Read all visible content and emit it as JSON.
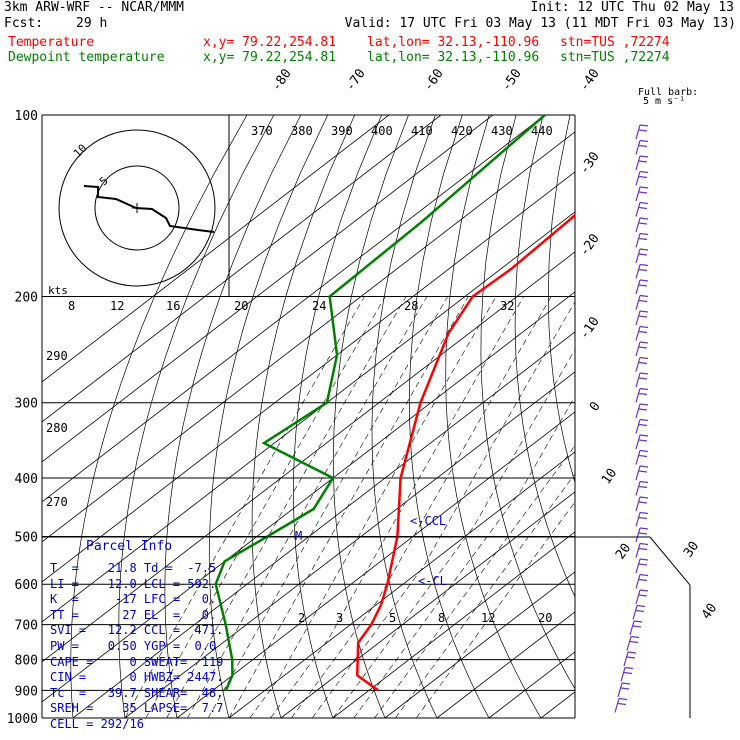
{
  "header": {
    "model": "3km ARW-WRF -- NCAR/MMM",
    "fcst_label": "Fcst:",
    "fcst_value": "29 h",
    "init": "Init: 12 UTC Thu 02 May 13",
    "valid": "Valid: 17 UTC Fri 03 May 13 (11 MDT Fri 03 May 13)"
  },
  "legend": [
    {
      "label": "Temperature",
      "xy": "x,y= 79.22,254.81",
      "latlon": "lat,lon= 32.13,-110.96",
      "stn": "stn=TUS ,72274",
      "color": "#ff0000"
    },
    {
      "label": "Dewpoint temperature",
      "xy": "x,y= 79.22,254.81",
      "latlon": "lat,lon= 32.13,-110.96",
      "stn": "stn=TUS ,72274",
      "color": "#008000"
    }
  ],
  "full_barb_label": "Full barb:",
  "full_barb_value": "5 m s⁻¹",
  "hodo_label": "kts",
  "hodo_rings": [
    "5",
    "10"
  ],
  "parcel": {
    "title": "Parcel Info",
    "rows": [
      "T  =    21.8 Td =  -7.5",
      "LI =    12.0 LCL = 592.",
      "K  =     -17 LFC =   0.",
      "TT =      27 EL  =   0.",
      "SVI =   12.2 CCL =  471.",
      "PW =    0.50 YGP =  0.0",
      "CAPE =     0 SWEAT=  119",
      "CIN =      0 HWBZ= 2447.",
      "Tc  =   39.7 SHEAR=  48.",
      "SREH =    35 LAPSE=  7.7",
      "CELL = 292/16"
    ]
  },
  "chart_data": {
    "type": "line",
    "title": "",
    "y_axis": "pressure (hPa)",
    "ylim": [
      1000,
      100
    ],
    "pressure_ticks": [
      100,
      200,
      300,
      400,
      500,
      600,
      700,
      800,
      900,
      1000
    ],
    "isotherm_labels": [
      "-80",
      "-70",
      "-60",
      "-50",
      "-40",
      "-30",
      "-20",
      "-10",
      "0",
      "10",
      "20",
      "30",
      "40"
    ],
    "theta_labels": [
      "370",
      "380",
      "390",
      "400",
      "410",
      "420",
      "430",
      "440"
    ],
    "theta_low_labels": [
      "290",
      "280",
      "270"
    ],
    "mixing_ratio_labels": [
      "8",
      "12",
      "16",
      "20",
      "24",
      "28",
      "32"
    ],
    "mixing_ratio_low_labels": [
      "2",
      "3",
      "5",
      "8",
      "12",
      "20"
    ],
    "annotations": [
      "CCL",
      "CL",
      "M"
    ],
    "series": [
      {
        "name": "Temperature",
        "color": "#ff0000",
        "points": [
          [
            100,
            -62
          ],
          [
            150,
            -59
          ],
          [
            180,
            -58
          ],
          [
            200,
            -58.5
          ],
          [
            230,
            -54
          ],
          [
            300,
            -42
          ],
          [
            400,
            -27
          ],
          [
            500,
            -13
          ],
          [
            600,
            -3
          ],
          [
            650,
            1
          ],
          [
            700,
            4
          ],
          [
            750,
            6
          ],
          [
            850,
            14
          ],
          [
            900,
            21.8
          ]
        ]
      },
      {
        "name": "Dewpoint temperature",
        "color": "#008000",
        "points": [
          [
            100,
            -90
          ],
          [
            150,
            -87
          ],
          [
            200,
            -86
          ],
          [
            250,
            -70
          ],
          [
            300,
            -60
          ],
          [
            350,
            -62
          ],
          [
            400,
            -40
          ],
          [
            450,
            -36
          ],
          [
            500,
            -38
          ],
          [
            550,
            -40
          ],
          [
            600,
            -36
          ],
          [
            700,
            -24
          ],
          [
            800,
            -14
          ],
          [
            850,
            -10
          ],
          [
            900,
            -7.5
          ]
        ]
      }
    ]
  }
}
